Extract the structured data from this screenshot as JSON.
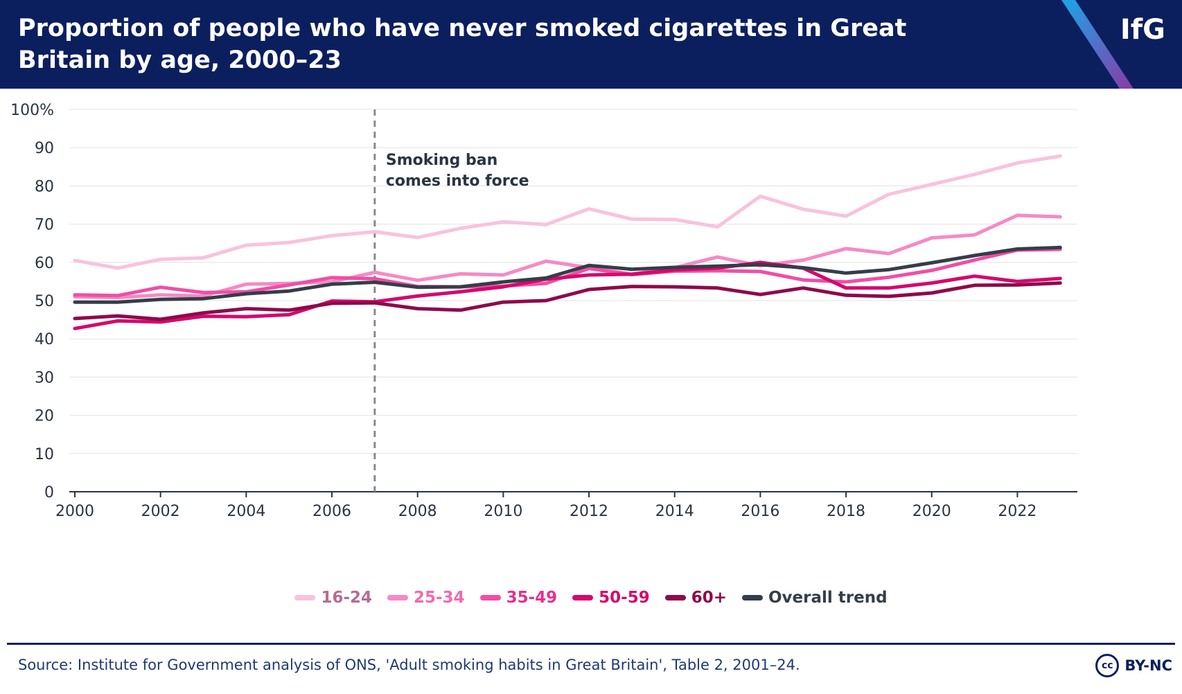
{
  "header": {
    "title": "Proportion of people who have never smoked cigarettes in Great Britain by age, 2000–23",
    "logo": "IfG"
  },
  "chart_data": {
    "type": "line",
    "title": "Proportion of people who have never smoked cigarettes in Great Britain by age, 2000–23",
    "xlabel": "",
    "ylabel": "",
    "x": [
      2000,
      2001,
      2002,
      2003,
      2004,
      2005,
      2006,
      2007,
      2008,
      2009,
      2010,
      2011,
      2012,
      2013,
      2014,
      2015,
      2016,
      2017,
      2018,
      2019,
      2020,
      2021,
      2022,
      2023
    ],
    "xticks": [
      "2000",
      "2002",
      "2004",
      "2006",
      "2008",
      "2010",
      "2012",
      "2014",
      "2016",
      "2018",
      "2020",
      "2022"
    ],
    "xlim": [
      2000,
      2023.4
    ],
    "ylim": [
      0,
      100
    ],
    "yticks": [
      "0",
      "10",
      "20",
      "30",
      "40",
      "50",
      "60",
      "70",
      "80",
      "90",
      "100%"
    ],
    "grid": true,
    "annotation": {
      "x": 2007,
      "lines": [
        "Smoking ban",
        "comes into force"
      ]
    },
    "series": [
      {
        "name": "16-24",
        "color": "#f9c2dc",
        "label_color": "#b36d93",
        "values": [
          60.5,
          58.5,
          60.8,
          61.2,
          64.5,
          65.2,
          67.0,
          68.0,
          66.5,
          68.9,
          70.6,
          69.9,
          74.0,
          71.3,
          71.2,
          69.3,
          77.3,
          73.9,
          72.1,
          77.8,
          80.4,
          83.0,
          86.0,
          87.8
        ]
      },
      {
        "name": "25-34",
        "color": "#f58ac4",
        "label_color": "#f06ab0",
        "values": [
          51.0,
          50.8,
          51.5,
          51.2,
          54.3,
          54.5,
          54.9,
          57.4,
          55.3,
          57.0,
          56.7,
          60.3,
          58.6,
          56.9,
          58.6,
          61.4,
          59.1,
          60.6,
          63.6,
          62.3,
          66.4,
          67.2,
          72.3,
          71.9
        ]
      },
      {
        "name": "35-49",
        "color": "#f04ea6",
        "label_color": "#e8308e",
        "values": [
          51.5,
          51.3,
          53.5,
          52.1,
          52.3,
          54.1,
          56.0,
          55.7,
          53.7,
          53.6,
          53.8,
          54.5,
          58.4,
          56.8,
          57.7,
          57.8,
          57.6,
          55.4,
          54.9,
          56.1,
          57.9,
          60.6,
          63.2,
          63.4
        ]
      },
      {
        "name": "50-59",
        "color": "#d4086e",
        "label_color": "#d4086e",
        "values": [
          42.7,
          44.7,
          44.4,
          45.9,
          45.8,
          46.3,
          49.9,
          49.7,
          51.2,
          52.3,
          53.6,
          55.6,
          56.7,
          56.9,
          58.0,
          58.5,
          60.0,
          58.5,
          53.3,
          53.3,
          54.6,
          56.4,
          55.0,
          55.8
        ]
      },
      {
        "name": "60+",
        "color": "#8e0a4a",
        "label_color": "#8e0a4a",
        "values": [
          45.3,
          46.0,
          45.1,
          46.8,
          47.9,
          47.5,
          49.3,
          49.4,
          47.9,
          47.5,
          49.6,
          50.0,
          52.9,
          53.7,
          53.6,
          53.3,
          51.6,
          53.3,
          51.4,
          51.1,
          52.0,
          54.0,
          54.1,
          54.6
        ]
      },
      {
        "name": "Overall trend",
        "color": "#353d48",
        "label_color": "#353d48",
        "values": [
          49.6,
          49.6,
          50.3,
          50.5,
          51.8,
          52.5,
          54.3,
          54.8,
          53.5,
          53.6,
          54.9,
          55.9,
          59.2,
          58.2,
          58.7,
          59.0,
          59.4,
          58.6,
          57.2,
          58.1,
          59.9,
          61.8,
          63.5,
          63.9
        ]
      }
    ]
  },
  "footer": {
    "source": "Source: Institute for Government analysis of ONS, 'Adult smoking habits in Great Britain', Table 2, 2001–24.",
    "cc_symbol": "cc",
    "license": "BY-NC"
  }
}
